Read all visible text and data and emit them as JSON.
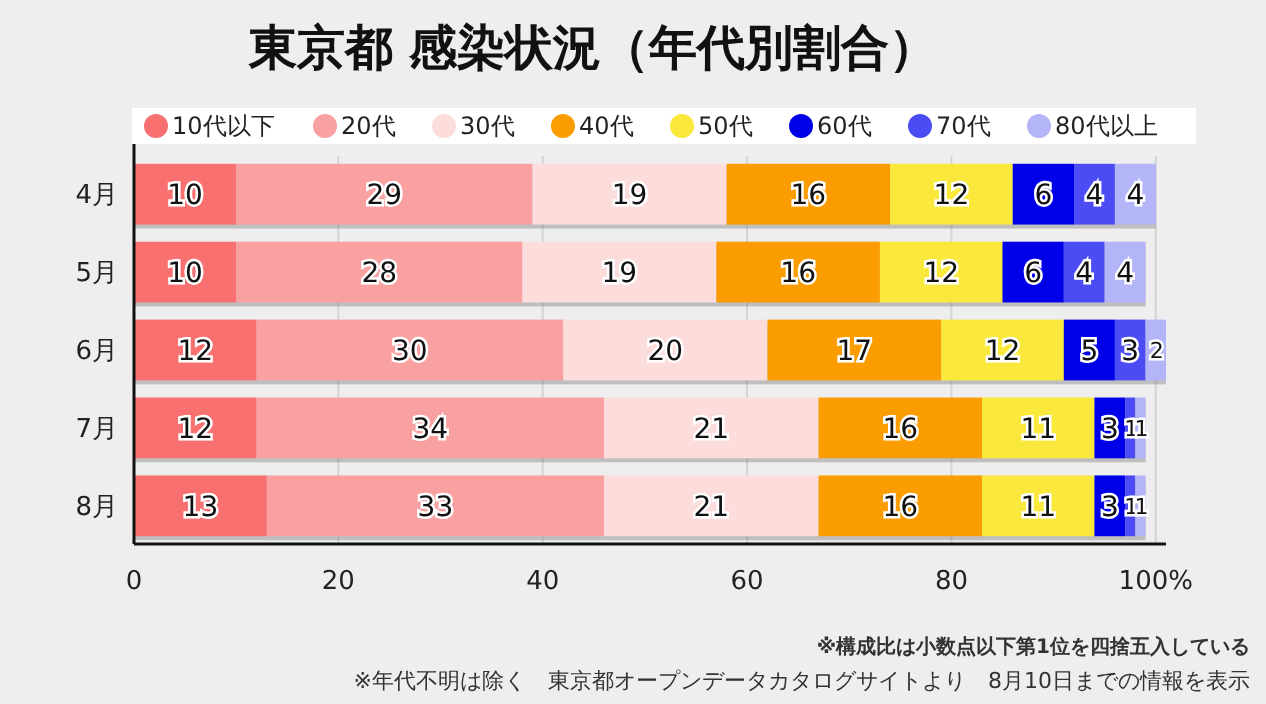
{
  "chart_data": {
    "type": "bar",
    "orientation": "horizontal",
    "stacked": true,
    "title": "東京都 感染状況（年代別割合）",
    "categories": [
      "4月",
      "5月",
      "6月",
      "7月",
      "8月"
    ],
    "series": [
      {
        "name": "10代以下",
        "color": "#f87070",
        "values": [
          10,
          10,
          12,
          12,
          13
        ]
      },
      {
        "name": "20代",
        "color": "#f9a0a0",
        "values": [
          29,
          28,
          30,
          34,
          33
        ]
      },
      {
        "name": "30代",
        "color": "#fddcdc",
        "values": [
          19,
          19,
          20,
          21,
          21
        ]
      },
      {
        "name": "40代",
        "color": "#fb9c00",
        "values": [
          16,
          16,
          17,
          16,
          16
        ]
      },
      {
        "name": "50代",
        "color": "#fbe83c",
        "values": [
          12,
          12,
          12,
          11,
          11
        ]
      },
      {
        "name": "60代",
        "color": "#0000e8",
        "values": [
          6,
          6,
          5,
          3,
          3
        ]
      },
      {
        "name": "70代",
        "color": "#4c4cf4",
        "values": [
          4,
          4,
          3,
          1,
          1
        ]
      },
      {
        "name": "80代以上",
        "color": "#b4b4f8",
        "values": [
          4,
          4,
          2,
          1,
          1
        ]
      }
    ],
    "xlim": [
      0,
      101
    ],
    "xticks": [
      0,
      20,
      40,
      60,
      80,
      {
        "value": 100,
        "label": "100%"
      }
    ],
    "grid": "x",
    "legend": "top",
    "data_labels": true,
    "annotations": [
      "※構成比は小数点以下第1位を四捨五入している",
      "※年代不明は除く　東京都オープンデータカタログサイトより　8月10日までの情報を表示"
    ]
  }
}
